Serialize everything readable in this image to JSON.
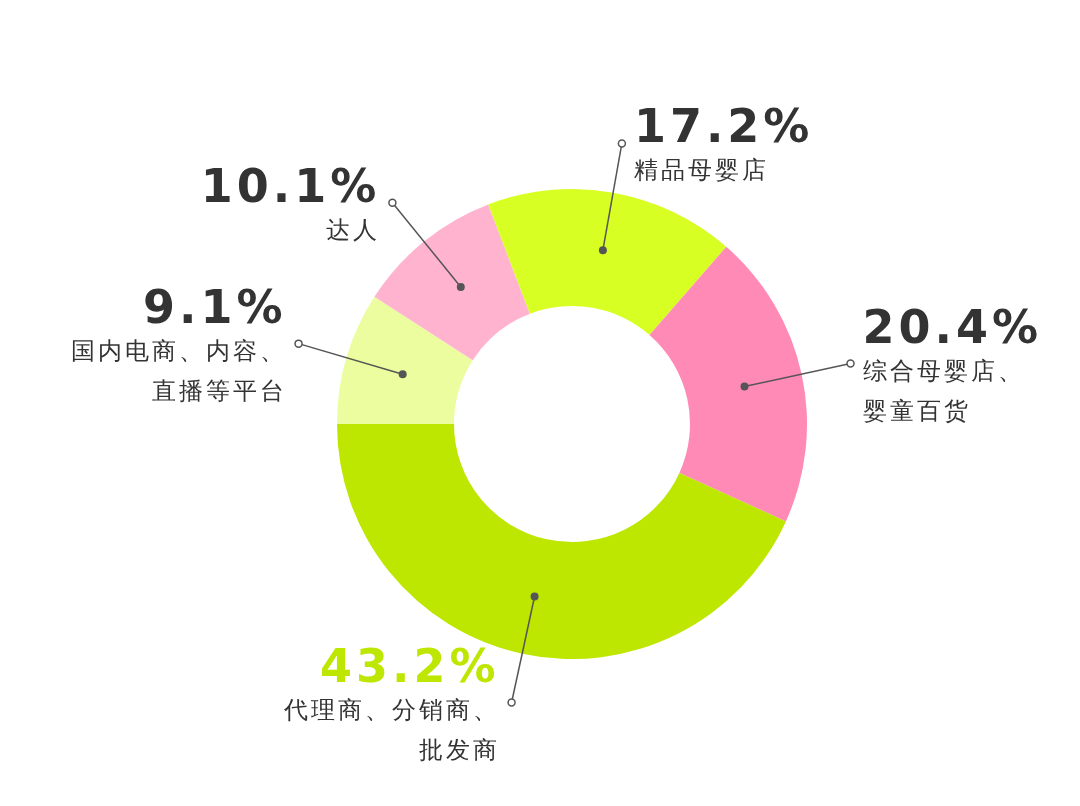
{
  "chart_data": {
    "type": "donut",
    "categories": [
      "国内电商、内容、直播等平台",
      "达人",
      "精品母婴店",
      "综合母婴店、婴童百货",
      "代理商、分销商、批发商"
    ],
    "values": [
      9.1,
      10.1,
      17.2,
      20.4,
      43.2
    ],
    "colors": [
      "#ecfda0",
      "#ffb3cf",
      "#d8ff23",
      "#ff8ab5",
      "#bde600"
    ],
    "value_labels": [
      "9.1%",
      "10.1%",
      "17.2%",
      "20.4%",
      "43.2%"
    ]
  }
}
